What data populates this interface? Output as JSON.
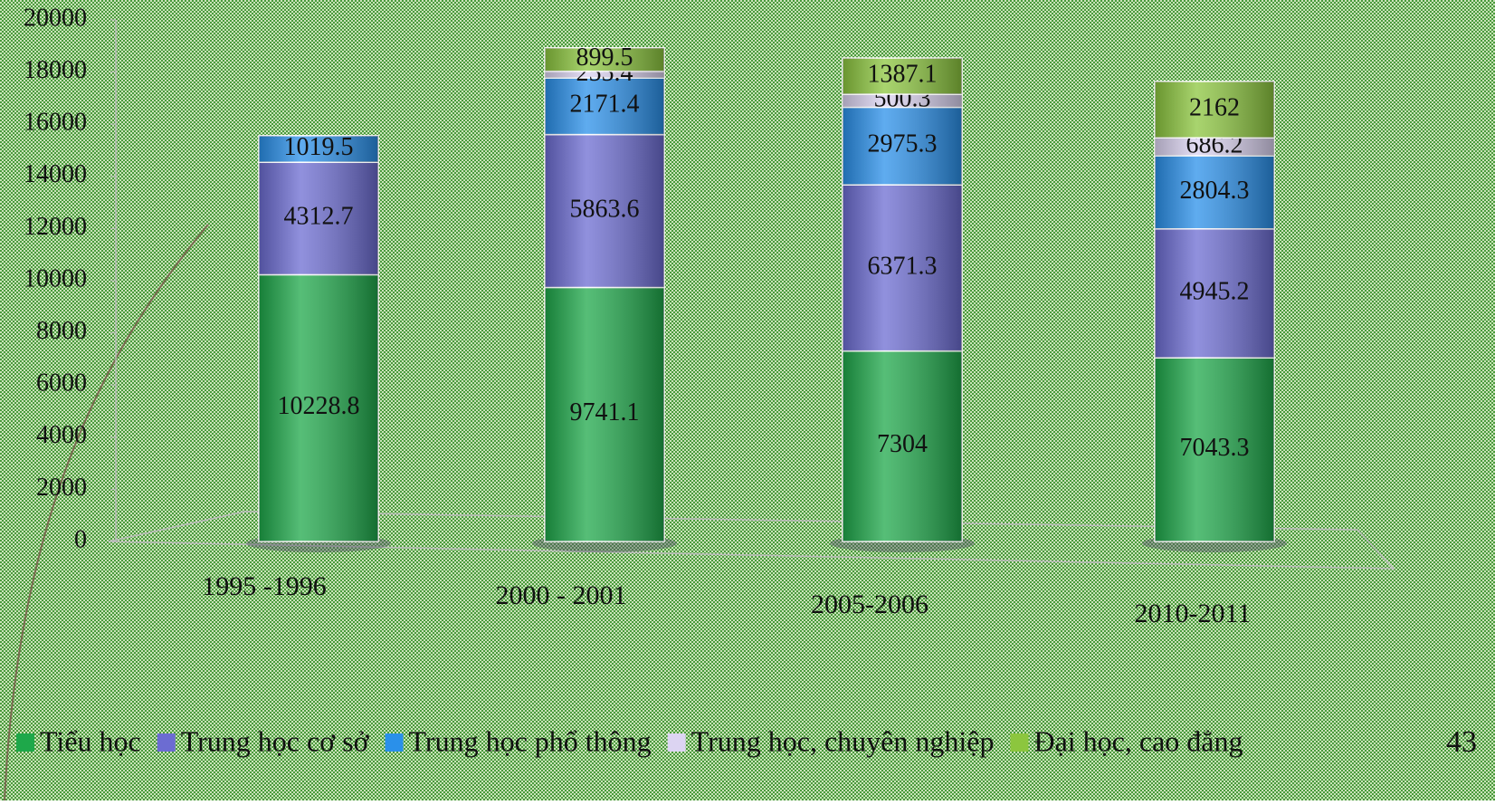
{
  "chart_data": {
    "type": "stacked_bar",
    "categories": [
      "1995 -1996",
      "2000 - 2001",
      "2005-2006",
      "2010-2011"
    ],
    "series": [
      {
        "name": "Tiểu học",
        "color": "#1ea84a",
        "values": [
          10228.8,
          9741.1,
          7304,
          7043.3
        ]
      },
      {
        "name": "Trung học cơ sở",
        "color": "#6c6cd2",
        "values": [
          4312.7,
          5863.6,
          6371.3,
          4945.2
        ]
      },
      {
        "name": "Trung học phổ thông",
        "color": "#2a90ea",
        "values": [
          1019.5,
          2171.4,
          2975.3,
          2804.3
        ]
      },
      {
        "name": "Trung học, chuyên nghiệp",
        "color": "#dcd4f2",
        "values": [
          null,
          255.4,
          500.3,
          686.2
        ]
      },
      {
        "name": "Đại học, cao đẳng",
        "color": "#8cc63e",
        "values": [
          null,
          899.5,
          1387.1,
          2162
        ]
      }
    ],
    "ylim": [
      0,
      20000
    ],
    "yticks": [
      0,
      2000,
      4000,
      6000,
      8000,
      10000,
      12000,
      14000,
      16000,
      18000,
      20000
    ],
    "legend": "bottom",
    "page_number": "43"
  }
}
